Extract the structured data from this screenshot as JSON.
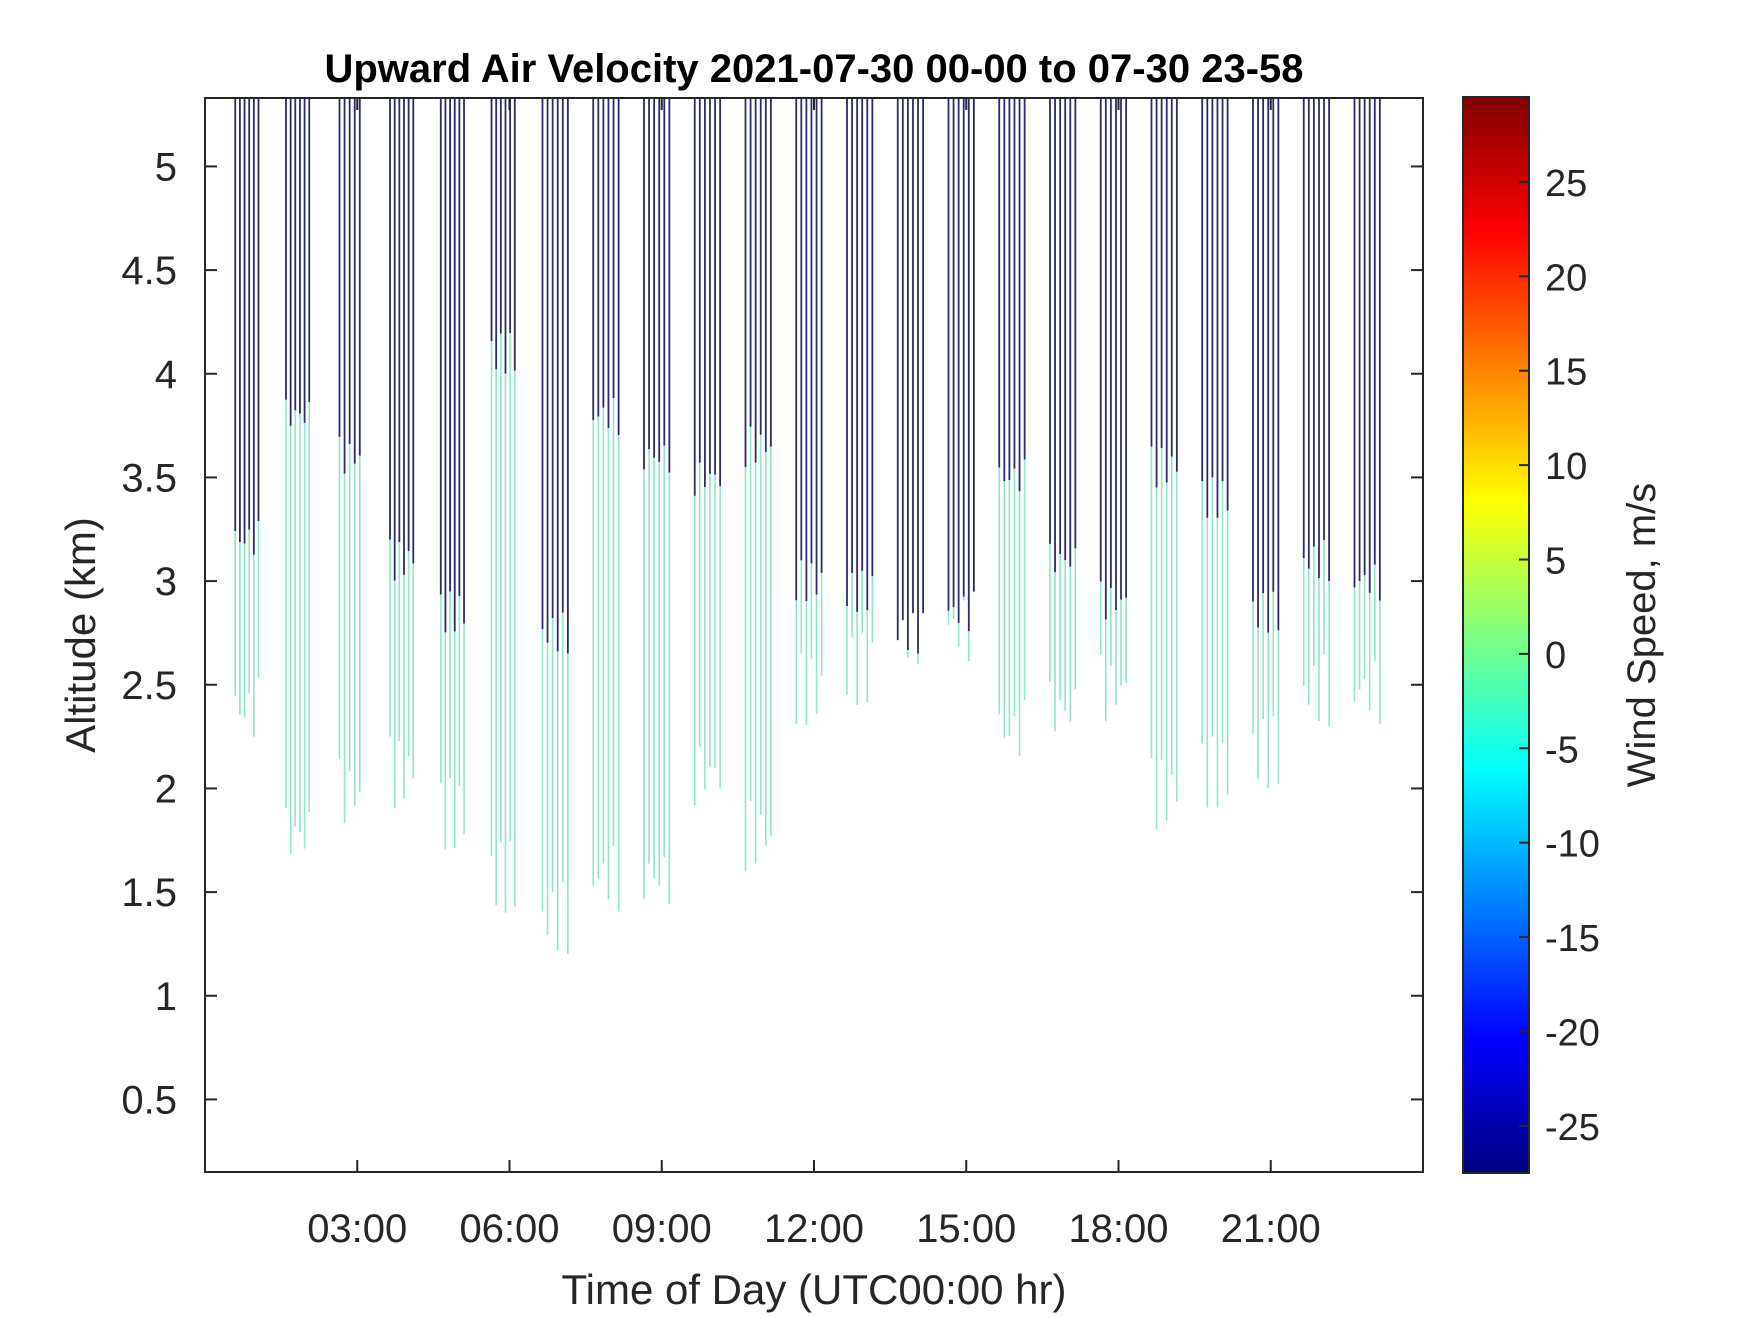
{
  "chart_data": {
    "type": "heatmap",
    "title": "Upward Air Velocity 2021-07-30 00-00 to 07-30 23-58",
    "xlabel": "Time of Day (UTC00:00 hr)",
    "ylabel": "Altitude (km)",
    "xlim_hours": [
      0,
      24
    ],
    "ylim_km": [
      0.15,
      5.33
    ],
    "x_ticks": [
      {
        "hour": 3,
        "label": "03:00"
      },
      {
        "hour": 6,
        "label": "06:00"
      },
      {
        "hour": 9,
        "label": "09:00"
      },
      {
        "hour": 12,
        "label": "12:00"
      },
      {
        "hour": 15,
        "label": "15:00"
      },
      {
        "hour": 18,
        "label": "18:00"
      },
      {
        "hour": 21,
        "label": "21:00"
      }
    ],
    "y_ticks": [
      {
        "value": 0.5,
        "label": "0.5"
      },
      {
        "value": 1,
        "label": "1"
      },
      {
        "value": 1.5,
        "label": "1.5"
      },
      {
        "value": 2,
        "label": "2"
      },
      {
        "value": 2.5,
        "label": "2.5"
      },
      {
        "value": 3,
        "label": "3"
      },
      {
        "value": 3.5,
        "label": "3.5"
      },
      {
        "value": 4,
        "label": "4"
      },
      {
        "value": 4.5,
        "label": "4.5"
      },
      {
        "value": 5,
        "label": "5"
      }
    ],
    "colorbar": {
      "label": "Wind Speed, m/s",
      "range": [
        -27.5,
        29.5
      ],
      "colormap": "jet",
      "ticks": [
        {
          "value": -25,
          "label": "-25"
        },
        {
          "value": -20,
          "label": "-20"
        },
        {
          "value": -15,
          "label": "-15"
        },
        {
          "value": -10,
          "label": "-10"
        },
        {
          "value": -5,
          "label": "-5"
        },
        {
          "value": 0,
          "label": "0"
        },
        {
          "value": 5,
          "label": "5"
        },
        {
          "value": 10,
          "label": "10"
        },
        {
          "value": 15,
          "label": "15"
        },
        {
          "value": 20,
          "label": "20"
        },
        {
          "value": 25,
          "label": "25"
        }
      ]
    },
    "grid": false,
    "profile_groups": [
      {
        "start_hour": 0.55,
        "end_hour": 1.1,
        "top_km": 5.33,
        "dark_bottom_km": 3.2,
        "green_bottom_km": 2.2
      },
      {
        "start_hour": 1.55,
        "end_hour": 2.1,
        "top_km": 5.33,
        "dark_bottom_km": 3.8,
        "green_bottom_km": 1.6
      },
      {
        "start_hour": 2.6,
        "end_hour": 3.1,
        "top_km": 5.33,
        "dark_bottom_km": 3.6,
        "green_bottom_km": 1.8
      },
      {
        "start_hour": 3.6,
        "end_hour": 4.15,
        "top_km": 5.33,
        "dark_bottom_km": 3.1,
        "green_bottom_km": 1.9
      },
      {
        "start_hour": 4.6,
        "end_hour": 5.15,
        "top_km": 5.33,
        "dark_bottom_km": 2.85,
        "green_bottom_km": 1.7
      },
      {
        "start_hour": 5.6,
        "end_hour": 6.15,
        "top_km": 5.33,
        "dark_bottom_km": 4.1,
        "green_bottom_km": 1.4
      },
      {
        "start_hour": 6.6,
        "end_hour": 7.2,
        "top_km": 5.33,
        "dark_bottom_km": 2.75,
        "green_bottom_km": 1.2
      },
      {
        "start_hour": 7.6,
        "end_hour": 8.2,
        "top_km": 5.33,
        "dark_bottom_km": 3.8,
        "green_bottom_km": 1.4
      },
      {
        "start_hour": 8.6,
        "end_hour": 9.2,
        "top_km": 5.33,
        "dark_bottom_km": 3.6,
        "green_bottom_km": 1.4
      },
      {
        "start_hour": 9.6,
        "end_hour": 10.2,
        "top_km": 5.33,
        "dark_bottom_km": 3.5,
        "green_bottom_km": 1.9
      },
      {
        "start_hour": 10.6,
        "end_hour": 11.2,
        "top_km": 5.33,
        "dark_bottom_km": 3.65,
        "green_bottom_km": 1.6
      },
      {
        "start_hour": 11.6,
        "end_hour": 12.2,
        "top_km": 5.33,
        "dark_bottom_km": 3.0,
        "green_bottom_km": 2.3
      },
      {
        "start_hour": 12.6,
        "end_hour": 13.2,
        "top_km": 5.33,
        "dark_bottom_km": 2.95,
        "green_bottom_km": 2.4
      },
      {
        "start_hour": 13.6,
        "end_hour": 14.2,
        "top_km": 5.33,
        "dark_bottom_km": 2.75,
        "green_bottom_km": 2.6
      },
      {
        "start_hour": 14.6,
        "end_hour": 15.2,
        "top_km": 5.33,
        "dark_bottom_km": 2.85,
        "green_bottom_km": 2.6
      },
      {
        "start_hour": 15.6,
        "end_hour": 16.2,
        "top_km": 5.33,
        "dark_bottom_km": 3.5,
        "green_bottom_km": 2.1
      },
      {
        "start_hour": 16.6,
        "end_hour": 17.2,
        "top_km": 5.33,
        "dark_bottom_km": 3.1,
        "green_bottom_km": 2.2
      },
      {
        "start_hour": 17.6,
        "end_hour": 18.2,
        "top_km": 5.33,
        "dark_bottom_km": 2.9,
        "green_bottom_km": 2.3
      },
      {
        "start_hour": 18.6,
        "end_hour": 19.2,
        "top_km": 5.33,
        "dark_bottom_km": 3.55,
        "green_bottom_km": 1.8
      },
      {
        "start_hour": 19.6,
        "end_hour": 20.2,
        "top_km": 5.33,
        "dark_bottom_km": 3.4,
        "green_bottom_km": 1.9
      },
      {
        "start_hour": 20.6,
        "end_hour": 21.2,
        "top_km": 5.33,
        "dark_bottom_km": 2.85,
        "green_bottom_km": 2.0
      },
      {
        "start_hour": 21.6,
        "end_hour": 22.2,
        "top_km": 5.33,
        "dark_bottom_km": 3.1,
        "green_bottom_km": 2.3
      },
      {
        "start_hour": 22.6,
        "end_hour": 23.2,
        "top_km": 5.33,
        "dark_bottom_km": 3.0,
        "green_bottom_km": 2.3
      }
    ],
    "profile_colors": {
      "upper": "#2b2a6e",
      "lower": "#8fe6c8"
    }
  }
}
